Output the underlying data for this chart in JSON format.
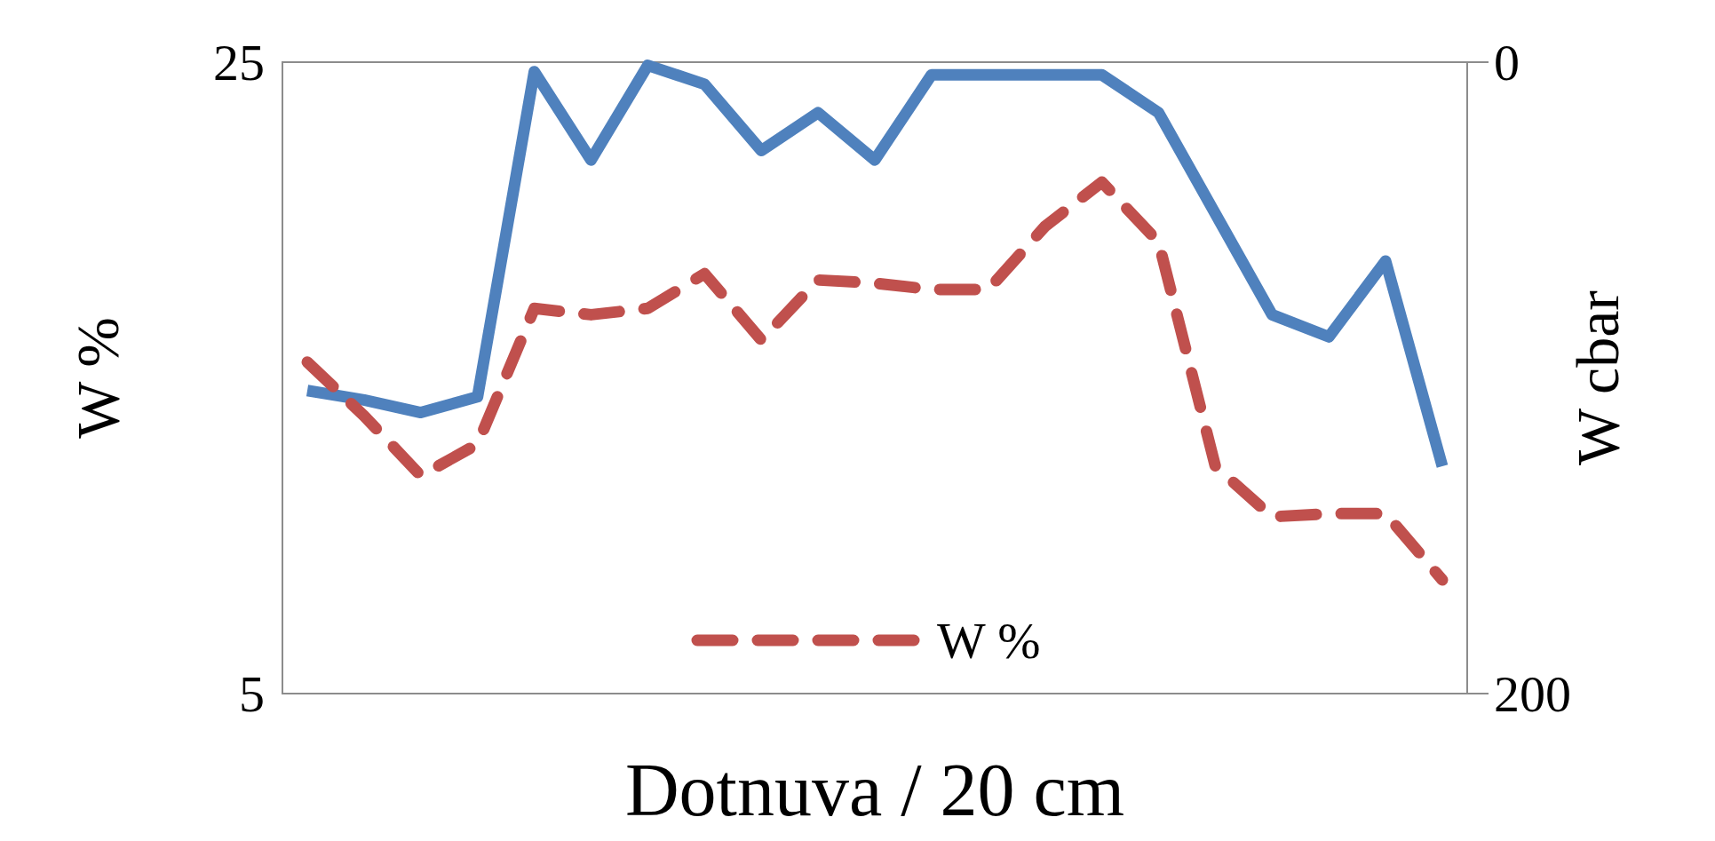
{
  "chart_data": {
    "type": "line",
    "xlabel": "Dotnuva / 20 cm",
    "ylabel": "W %",
    "y2label": "W cbar",
    "categories": [
      null,
      null,
      null,
      null,
      null,
      null,
      null,
      null,
      null,
      null,
      null,
      null,
      null,
      null,
      null,
      null,
      null,
      null,
      null,
      null,
      null
    ],
    "ylim": [
      5,
      25
    ],
    "yticks": [
      5,
      25
    ],
    "y2lim": [
      200,
      0
    ],
    "y2ticks": [
      0,
      200
    ],
    "legend": "bottom",
    "grid": false,
    "series": [
      {
        "color": "#4f81bd",
        "axis": "y2",
        "line_style": "solid",
        "values": [
          104,
          107,
          111,
          106,
          3,
          31,
          1,
          7,
          28,
          16,
          31,
          4,
          4,
          4,
          4,
          16,
          48,
          80,
          87,
          63,
          128
        ]
      },
      {
        "name": "W %",
        "color": "#c0504d",
        "axis": "y",
        "line_style": "dashed",
        "values": [
          15.5,
          13.8,
          11.9,
          12.9,
          17.2,
          17,
          17.2,
          18.3,
          16.2,
          18.1,
          18,
          17.8,
          17.8,
          19.8,
          21.2,
          19.3,
          12.2,
          10.6,
          10.7,
          10.7,
          8.6
        ]
      }
    ]
  }
}
